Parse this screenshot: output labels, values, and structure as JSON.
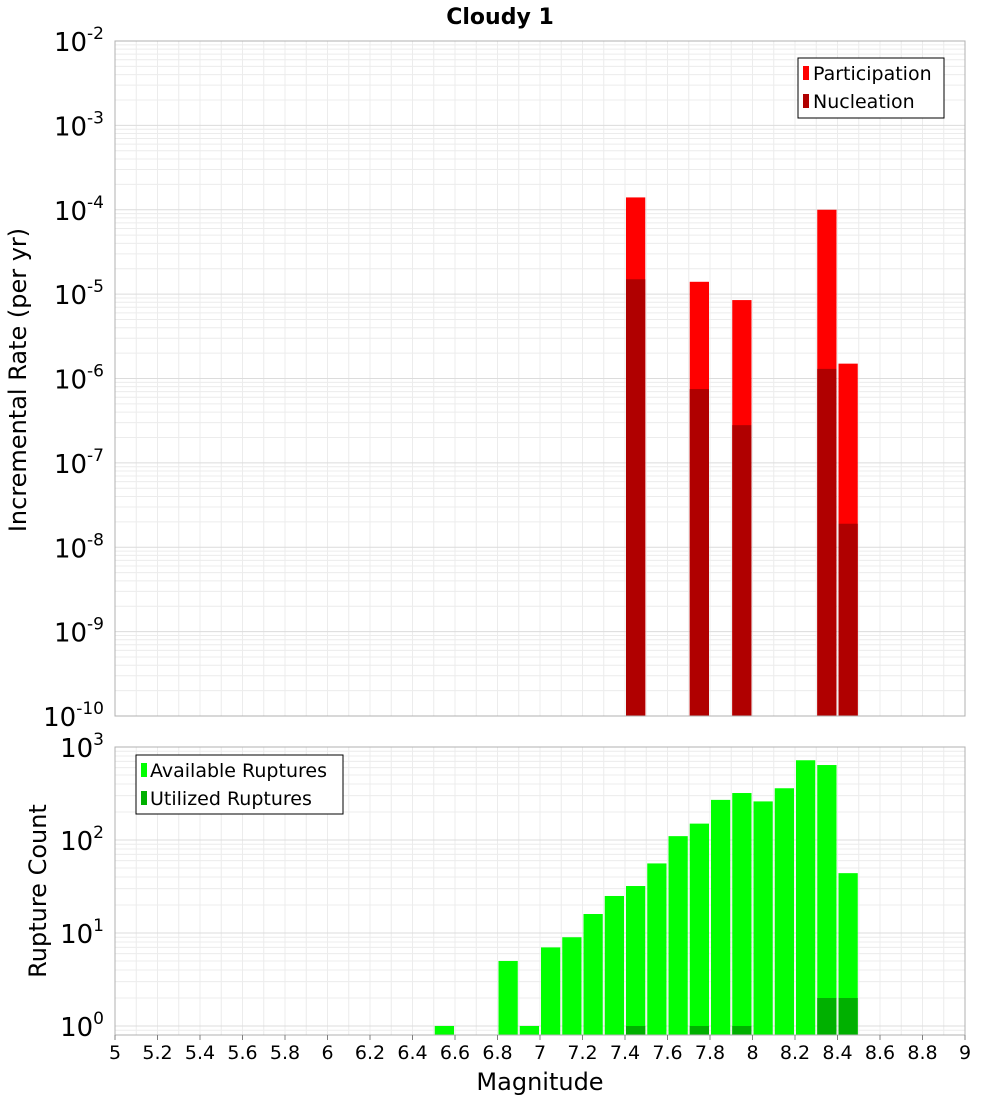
{
  "chart_data": [
    {
      "type": "bar",
      "title": "Cloudy 1",
      "xlabel": "",
      "ylabel": "Incremental Rate (per yr)",
      "y_scale": "log",
      "ylim": [
        1e-10,
        0.01
      ],
      "xlim": [
        5,
        9
      ],
      "bin_width": 0.1,
      "grid": true,
      "legend_placement": "top-right",
      "y_ticks": [
        {
          "base": "10",
          "exp": "-10",
          "value": 1e-10
        },
        {
          "base": "10",
          "exp": "-9",
          "value": 1e-09
        },
        {
          "base": "10",
          "exp": "-8",
          "value": 1e-08
        },
        {
          "base": "10",
          "exp": "-7",
          "value": 1e-07
        },
        {
          "base": "10",
          "exp": "-6",
          "value": 1e-06
        },
        {
          "base": "10",
          "exp": "-5",
          "value": 1e-05
        },
        {
          "base": "10",
          "exp": "-4",
          "value": 0.0001
        },
        {
          "base": "10",
          "exp": "-3",
          "value": 0.001
        },
        {
          "base": "10",
          "exp": "-2",
          "value": 0.01
        }
      ],
      "series": [
        {
          "name": "Participation",
          "color": "#ff0000",
          "x": [
            7.45,
            7.75,
            7.95,
            8.35,
            8.45
          ],
          "values": [
            0.00014,
            1.4e-05,
            8.5e-06,
            0.0001,
            1.5e-06
          ]
        },
        {
          "name": "Nucleation",
          "color": "#b00000",
          "x": [
            7.45,
            7.75,
            7.95,
            8.35,
            8.45
          ],
          "values": [
            1.5e-05,
            7.5e-07,
            2.8e-07,
            1.3e-06,
            1.9e-08
          ]
        }
      ]
    },
    {
      "type": "bar",
      "title": "",
      "xlabel": "Magnitude",
      "ylabel": "Rupture Count",
      "y_scale": "log",
      "ylim": [
        0.8,
        1000
      ],
      "xlim": [
        5,
        9
      ],
      "bin_width": 0.1,
      "grid": true,
      "legend_placement": "top-left",
      "x_ticks": [
        "5",
        "5.2",
        "5.4",
        "5.6",
        "5.8",
        "6",
        "6.2",
        "6.4",
        "6.6",
        "6.8",
        "7",
        "7.2",
        "7.4",
        "7.6",
        "7.8",
        "8",
        "8.2",
        "8.4",
        "8.6",
        "8.8",
        "9"
      ],
      "y_ticks": [
        {
          "base": "10",
          "exp": "0",
          "value": 1
        },
        {
          "base": "10",
          "exp": "1",
          "value": 10
        },
        {
          "base": "10",
          "exp": "2",
          "value": 100
        },
        {
          "base": "10",
          "exp": "3",
          "value": 1000
        }
      ],
      "series": [
        {
          "name": "Available Ruptures",
          "color": "#00ff00",
          "x": [
            6.55,
            6.85,
            6.95,
            7.05,
            7.15,
            7.25,
            7.35,
            7.45,
            7.55,
            7.65,
            7.75,
            7.85,
            7.95,
            8.05,
            8.15,
            8.25,
            8.35,
            8.45
          ],
          "values": [
            1,
            5,
            1,
            7,
            9,
            16,
            25,
            32,
            56,
            110,
            150,
            270,
            320,
            260,
            360,
            720,
            640,
            44
          ]
        },
        {
          "name": "Utilized Ruptures",
          "color": "#00b000",
          "x": [
            7.45,
            7.75,
            7.95,
            8.35,
            8.45
          ],
          "values": [
            1,
            1,
            1,
            2,
            2
          ]
        }
      ]
    }
  ]
}
